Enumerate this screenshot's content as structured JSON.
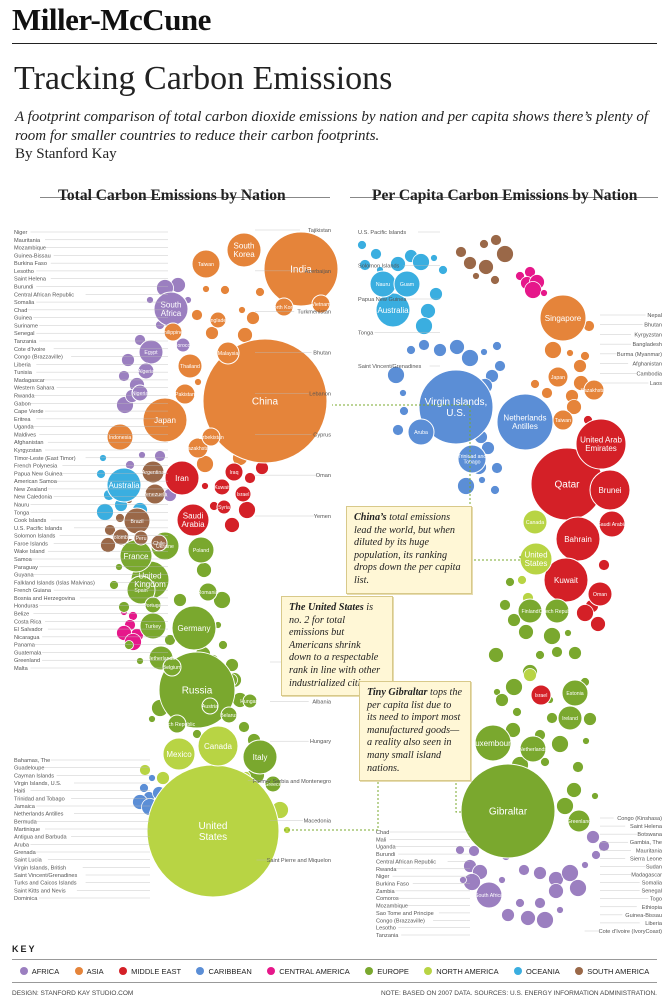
{
  "masthead": "Miller-McCune",
  "title": "Tracking Carbon Emissions",
  "subtitle": "A footprint comparison of total carbon dioxide emissions by nation and per capita shows there’s plenty of room for smaller countries to reduce their carbon footprints.",
  "byline": "By Stanford Kay",
  "colors": {
    "Africa": "#9b7fc0",
    "Asia": "#e5843a",
    "Middle East": "#d42027",
    "Caribbean": "#5b8ed6",
    "Central America": "#e6178a",
    "Europe": "#7aa82e",
    "North America": "#b8d444",
    "Oceania": "#3aaee0",
    "South America": "#9a6848"
  },
  "key": {
    "title": "KEY",
    "items": [
      {
        "label": "AFRICA",
        "region": "Africa"
      },
      {
        "label": "ASIA",
        "region": "Asia"
      },
      {
        "label": "MIDDLE EAST",
        "region": "Middle East"
      },
      {
        "label": "CARIBBEAN",
        "region": "Caribbean"
      },
      {
        "label": "CENTRAL AMERICA",
        "region": "Central America"
      },
      {
        "label": "EUROPE",
        "region": "Europe"
      },
      {
        "label": "NORTH AMERICA",
        "region": "North America"
      },
      {
        "label": "OCEANIA",
        "region": "Oceania"
      },
      {
        "label": "SOUTH AMERICA",
        "region": "South America"
      }
    ]
  },
  "annotations": {
    "china": {
      "lead": "China’s",
      "text": " total emissions lead the world, but when diluted by its huge population, its ranking drops down the per capita list."
    },
    "us": {
      "lead": "The United States",
      "text": " is no. 2 for total emissions but Americans shrink down to a respectable rank in line with other industrialized citizens."
    },
    "gibraltar": {
      "lead": "Tiny Gibraltar",
      "text": " tops the per capita list due to its need to import most manufactured goods—a reality also seen in many small island nations."
    }
  },
  "footer": {
    "left": "DESIGN: STANFORD KAY STUDIO.COM",
    "right": "NOTE: BASED ON 2007 DATA. SOURCES: U.S. ENERGY INFORMATION ADMINISTRATION."
  },
  "chart_data": [
    {
      "type": "bubble",
      "title": "Total Carbon Emissions by Nation",
      "labeled_bubbles": [
        {
          "label": "China",
          "region": "Asia"
        },
        {
          "label": "United States",
          "region": "North America"
        },
        {
          "label": "Russia",
          "region": "Europe"
        },
        {
          "label": "India",
          "region": "Asia"
        },
        {
          "label": "Japan",
          "region": "Asia"
        },
        {
          "label": "Germany",
          "region": "Europe"
        },
        {
          "label": "Canada",
          "region": "North America"
        },
        {
          "label": "United Kingdom",
          "region": "Europe"
        },
        {
          "label": "South Korea",
          "region": "Asia"
        },
        {
          "label": "Iran",
          "region": "Middle East"
        },
        {
          "label": "Italy",
          "region": "Europe"
        },
        {
          "label": "Mexico",
          "region": "North America"
        },
        {
          "label": "Australia",
          "region": "Oceania"
        },
        {
          "label": "France",
          "region": "Europe"
        },
        {
          "label": "Saudi Arabia",
          "region": "Middle East"
        },
        {
          "label": "South Africa",
          "region": "Africa"
        },
        {
          "label": "Spain",
          "region": "Europe"
        },
        {
          "label": "Ukraine",
          "region": "Europe"
        },
        {
          "label": "Brazil",
          "region": "South America"
        },
        {
          "label": "Taiwan",
          "region": "Asia"
        },
        {
          "label": "Indonesia",
          "region": "Asia"
        },
        {
          "label": "Poland",
          "region": "Europe"
        },
        {
          "label": "Turkey",
          "region": "Europe"
        },
        {
          "label": "Thailand",
          "region": "Asia"
        },
        {
          "label": "Netherlands",
          "region": "Europe"
        },
        {
          "label": "Egypt",
          "region": "Africa"
        },
        {
          "label": "Argentina",
          "region": "South America"
        },
        {
          "label": "Malaysia",
          "region": "Asia"
        },
        {
          "label": "Venezuela",
          "region": "South America"
        },
        {
          "label": "Kazakhstan",
          "region": "Asia"
        },
        {
          "label": "Pakistan",
          "region": "Asia"
        },
        {
          "label": "Philippines",
          "region": "Asia"
        },
        {
          "label": "Vietnam",
          "region": "Asia"
        },
        {
          "label": "North Korea",
          "region": "Asia"
        },
        {
          "label": "Belgium",
          "region": "Europe"
        },
        {
          "label": "Iraq",
          "region": "Middle East"
        },
        {
          "label": "Uzbekistan",
          "region": "Asia"
        },
        {
          "label": "Algeria",
          "region": "Africa"
        },
        {
          "label": "Romania",
          "region": "Europe"
        },
        {
          "label": "Czech Republic",
          "region": "Europe"
        },
        {
          "label": "Greece",
          "region": "Europe"
        },
        {
          "label": "Israel",
          "region": "Middle East"
        },
        {
          "label": "Kuwait",
          "region": "Middle East"
        },
        {
          "label": "Austria",
          "region": "Europe"
        },
        {
          "label": "Belarus",
          "region": "Europe"
        },
        {
          "label": "Nigeria",
          "region": "Africa"
        },
        {
          "label": "Chile",
          "region": "South America"
        },
        {
          "label": "Colombia",
          "region": "South America"
        },
        {
          "label": "Syria",
          "region": "Middle East"
        },
        {
          "label": "Portugal",
          "region": "Europe"
        },
        {
          "label": "Hungary",
          "region": "Europe"
        },
        {
          "label": "Peru",
          "region": "South America"
        },
        {
          "label": "Morocco",
          "region": "Africa"
        },
        {
          "label": "Bangladesh",
          "region": "Asia"
        }
      ],
      "left_labels": [
        "Niger",
        "Mauritania",
        "Mozambique",
        "Guinea-Bissau",
        "Burkina Faso",
        "Lesotho",
        "Saint Helena",
        "Burundi",
        "Central African Republic",
        "Somalia",
        "Chad",
        "Guinea",
        "Suriname",
        "Senegal",
        "Tanzania",
        "Cote d’Ivoire",
        "Congo (Brazzaville)",
        "Liberia",
        "Tunisia",
        "Madagascar",
        "Western Sahara",
        "Rwanda",
        "Gabon",
        "Cape Verde",
        "Eritrea",
        "Uganda",
        "Maldives",
        "Afghanistan",
        "Kyrgyzstan",
        "Timor-Leste (East Timor)",
        "French Polynesia",
        "Papua New Guinea",
        "American Samoa",
        "New Zealand",
        "New Caledonia",
        "Nauru",
        "Tonga",
        "Cook Islands",
        "U.S. Pacific Islands",
        "Solomon Islands",
        "Faroe Islands",
        "Wake Island",
        "Samoa",
        "Paraguay",
        "Guyana",
        "Falkland Islands (Islas Malvinas)",
        "French Guiana",
        "Bosnia and Herzegovina",
        "Honduras",
        "Belize",
        "Costa Rica",
        "El Salvador",
        "Nicaragua",
        "Panama",
        "Guatemala",
        "Greenland",
        "Malta",
        "Bahamas, The",
        "Guadeloupe",
        "Cayman Islands",
        "Virgin Islands, U.S.",
        "Haiti",
        "Trinidad and Tobago",
        "Jamaica",
        "Netherlands Antilles",
        "Bermuda",
        "Martinique",
        "Antigua and Barbuda",
        "Aruba",
        "Grenada",
        "Saint Lucia",
        "Virgin Islands, British",
        "Saint Vincent/Grenadines",
        "Turks and Caicos Islands",
        "Saint Kitts and Nevis",
        "Dominica"
      ],
      "right_labels": [
        "Tajikistan",
        "Azerbaijan",
        "Turkmenistan",
        "Bhutan",
        "Lebanon",
        "Cyprus",
        "Oman",
        "Yemen",
        "Switzerland",
        "Albania",
        "Hungary",
        "Former Serbia and Montenegro",
        "Macedonia",
        "Saint Pierre and Miquelon"
      ]
    },
    {
      "type": "bubble",
      "title": "Per Capita Carbon Emissions by Nation",
      "labeled_bubbles": [
        {
          "label": "Gibraltar",
          "region": "Europe"
        },
        {
          "label": "Virgin Islands, U.S.",
          "region": "Caribbean"
        },
        {
          "label": "Qatar",
          "region": "Middle East"
        },
        {
          "label": "Netherlands Antilles",
          "region": "Caribbean"
        },
        {
          "label": "United Arab Emirates",
          "region": "Middle East"
        },
        {
          "label": "Bahrain",
          "region": "Middle East"
        },
        {
          "label": "Kuwait",
          "region": "Middle East"
        },
        {
          "label": "Singapore",
          "region": "Asia"
        },
        {
          "label": "United States",
          "region": "North America"
        },
        {
          "label": "Brunei",
          "region": "Middle East"
        },
        {
          "label": "Luxembourg",
          "region": "Europe"
        },
        {
          "label": "Australia",
          "region": "Oceania"
        },
        {
          "label": "Canada",
          "region": "North America"
        },
        {
          "label": "Aruba",
          "region": "Caribbean"
        },
        {
          "label": "Trinidad and Tobago",
          "region": "Caribbean"
        },
        {
          "label": "Saudi Arabia",
          "region": "Middle East"
        },
        {
          "label": "Estonia",
          "region": "Europe"
        },
        {
          "label": "Nauru",
          "region": "Oceania"
        },
        {
          "label": "Guam",
          "region": "Oceania"
        },
        {
          "label": "Netherlands",
          "region": "Europe"
        },
        {
          "label": "Finland",
          "region": "Europe"
        },
        {
          "label": "Czech Republic",
          "region": "Europe"
        },
        {
          "label": "Ireland",
          "region": "Europe"
        },
        {
          "label": "Greenland",
          "region": "Europe"
        },
        {
          "label": "Oman",
          "region": "Middle East"
        },
        {
          "label": "Israel",
          "region": "Middle East"
        },
        {
          "label": "Japan",
          "region": "Asia"
        },
        {
          "label": "South Africa",
          "region": "Africa"
        },
        {
          "label": "Taiwan",
          "region": "Asia"
        },
        {
          "label": "Kazakhstan",
          "region": "Asia"
        }
      ],
      "left_labels": [
        "U.S. Pacific Islands",
        "Solomon Islands",
        "Papua New Guinea",
        "Tonga",
        "Saint Vincent/Grenadines",
        "Chad",
        "Mali",
        "Uganda",
        "Burundi",
        "Central African Republic",
        "Rwanda",
        "Niger",
        "Burkina Faso",
        "Zambia",
        "Comoros",
        "Mozambique",
        "Sao Tome and Principe",
        "Congo (Brazzaville)",
        "Lesotho",
        "Tanzania"
      ],
      "right_labels": [
        "Nepal",
        "Bhutan",
        "Kyrgyzstan",
        "Bangladesh",
        "Burma (Myanmar)",
        "Afghanistan",
        "Cambodia",
        "Laos",
        "Congo (Kinshasa)",
        "Saint Helena",
        "Botswana",
        "Gambia, The",
        "Mauritania",
        "Sierra Leone",
        "Sudan",
        "Madagascar",
        "Somalia",
        "Senegal",
        "Togo",
        "Ethiopia",
        "Guinea-Bissau",
        "Liberia",
        "Cote d’Ivoire (IvoryCoast)"
      ]
    }
  ]
}
